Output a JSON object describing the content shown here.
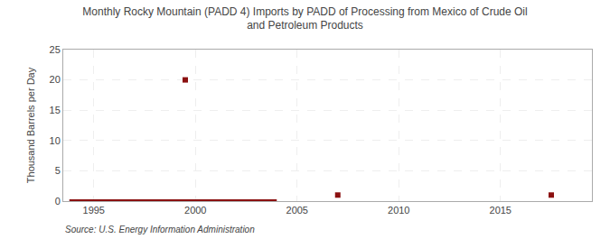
{
  "chart_data": {
    "type": "line",
    "title": "Monthly Rocky Mountain (PADD 4) Imports by PADD of Processing from Mexico of Crude Oil\nand Petroleum Products",
    "ylabel": "Thousand Barrels per Day",
    "annotations": [
      "Source: U.S. Energy Information Administration"
    ],
    "series": [
      {
        "type": "line",
        "x": [
          1993.8,
          2004.0
        ],
        "values": [
          0.0,
          0.0
        ],
        "color": "#8b1010",
        "line_style": "solid"
      },
      {
        "type": "scatter",
        "x": [
          1999.5,
          2007.0,
          2017.5
        ],
        "values": [
          20.0,
          1.0,
          1.0
        ],
        "color": "#8b1010",
        "marker": "square"
      }
    ],
    "xlim": [
      1993.5,
      2019.5
    ],
    "ylim": [
      0,
      25
    ],
    "xticks": [
      1995,
      2000,
      2005,
      2010,
      2015
    ],
    "yticks": [
      0,
      5,
      10,
      15,
      20,
      25
    ],
    "grid": true
  }
}
